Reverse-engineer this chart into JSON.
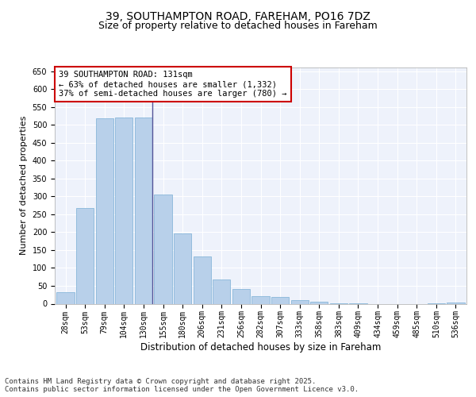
{
  "title1": "39, SOUTHAMPTON ROAD, FAREHAM, PO16 7DZ",
  "title2": "Size of property relative to detached houses in Fareham",
  "xlabel": "Distribution of detached houses by size in Fareham",
  "ylabel": "Number of detached properties",
  "bar_labels": [
    "28sqm",
    "53sqm",
    "79sqm",
    "104sqm",
    "130sqm",
    "155sqm",
    "180sqm",
    "206sqm",
    "231sqm",
    "256sqm",
    "282sqm",
    "307sqm",
    "333sqm",
    "358sqm",
    "383sqm",
    "409sqm",
    "434sqm",
    "459sqm",
    "485sqm",
    "510sqm",
    "536sqm"
  ],
  "bar_values": [
    32,
    267,
    517,
    520,
    520,
    305,
    197,
    133,
    67,
    40,
    22,
    18,
    9,
    6,
    2,
    1,
    0,
    0,
    0,
    1,
    3
  ],
  "bar_color": "#b8d0ea",
  "bar_edge_color": "#7aafd4",
  "highlight_index": 4,
  "highlight_line_color": "#555599",
  "annotation_text": "39 SOUTHAMPTON ROAD: 131sqm\n← 63% of detached houses are smaller (1,332)\n37% of semi-detached houses are larger (780) →",
  "annotation_box_color": "#ffffff",
  "annotation_box_edge_color": "#cc0000",
  "ylim": [
    0,
    660
  ],
  "yticks": [
    0,
    50,
    100,
    150,
    200,
    250,
    300,
    350,
    400,
    450,
    500,
    550,
    600,
    650
  ],
  "bg_color": "#eef2fb",
  "grid_color": "#ffffff",
  "footer_text": "Contains HM Land Registry data © Crown copyright and database right 2025.\nContains public sector information licensed under the Open Government Licence v3.0.",
  "title1_fontsize": 10,
  "title2_fontsize": 9,
  "xlabel_fontsize": 8.5,
  "ylabel_fontsize": 8,
  "tick_fontsize": 7,
  "annotation_fontsize": 7.5,
  "footer_fontsize": 6.5
}
